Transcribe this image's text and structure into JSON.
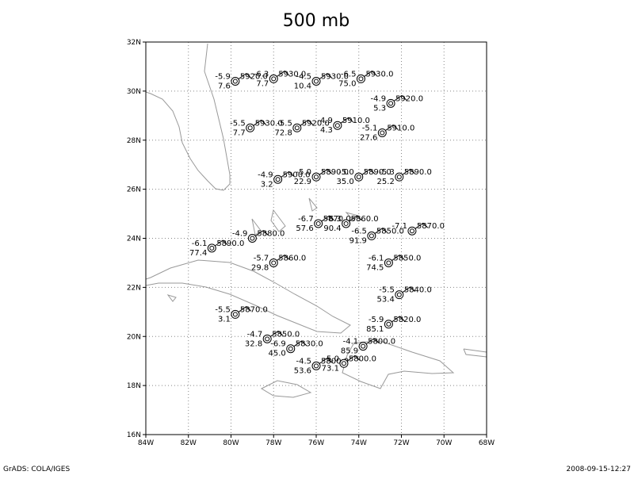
{
  "title": "500 mb",
  "xaxis": {
    "lim": [
      -84,
      -68
    ],
    "ticks": [
      {
        "value": -84,
        "label": "84W"
      },
      {
        "value": -82,
        "label": "82W"
      },
      {
        "value": -80,
        "label": "80W"
      },
      {
        "value": -78,
        "label": "78W"
      },
      {
        "value": -76,
        "label": "76W"
      },
      {
        "value": -74,
        "label": "74W"
      },
      {
        "value": -72,
        "label": "72W"
      },
      {
        "value": -70,
        "label": "70W"
      },
      {
        "value": -68,
        "label": "68W"
      }
    ]
  },
  "yaxis": {
    "lim": [
      16,
      32
    ],
    "ticks": [
      {
        "value": 16,
        "label": "16N"
      },
      {
        "value": 18,
        "label": "18N"
      },
      {
        "value": 20,
        "label": "20N"
      },
      {
        "value": 22,
        "label": "22N"
      },
      {
        "value": 24,
        "label": "24N"
      },
      {
        "value": 26,
        "label": "26N"
      },
      {
        "value": 28,
        "label": "28N"
      },
      {
        "value": 30,
        "label": "30N"
      },
      {
        "value": 32,
        "label": "32N"
      }
    ]
  },
  "stations": [
    {
      "lon": -79.8,
      "lat": 30.4,
      "temp": "-5.9",
      "height": "5920.0",
      "dd": "7.6"
    },
    {
      "lon": -78.0,
      "lat": 30.5,
      "temp": "-6.3",
      "height": "5930.0",
      "dd": "7.7"
    },
    {
      "lon": -76.0,
      "lat": 30.4,
      "temp": "-4.5",
      "height": "5930.0",
      "dd": "10.4"
    },
    {
      "lon": -73.9,
      "lat": 30.5,
      "temp": "-6.5",
      "height": "5930.0",
      "dd": "75.0"
    },
    {
      "lon": -72.5,
      "lat": 29.5,
      "temp": "-4.9",
      "height": "5920.0",
      "dd": "5.3"
    },
    {
      "lon": -79.1,
      "lat": 28.5,
      "temp": "-5.5",
      "height": "5930.0",
      "dd": "7.7"
    },
    {
      "lon": -76.9,
      "lat": 28.5,
      "temp": "-5.5",
      "height": "5920.0",
      "dd": "72.8"
    },
    {
      "lon": -75.0,
      "lat": 28.6,
      "temp": "-4.9",
      "height": "5910.0",
      "dd": "4.3"
    },
    {
      "lon": -72.9,
      "lat": 28.3,
      "temp": "-5.1",
      "height": "5910.0",
      "dd": "27.6"
    },
    {
      "lon": -77.8,
      "lat": 26.4,
      "temp": "-4.9",
      "height": "5900.0",
      "dd": "3.2"
    },
    {
      "lon": -76.0,
      "lat": 26.5,
      "temp": "-5.0",
      "height": "5890.0",
      "dd": "22.9"
    },
    {
      "lon": -74.0,
      "lat": 26.5,
      "temp": "-5.0",
      "height": "5890.0",
      "dd": "35.0"
    },
    {
      "lon": -72.1,
      "lat": 26.5,
      "temp": "-5.3",
      "height": "5890.0",
      "dd": "25.2"
    },
    {
      "lon": -80.9,
      "lat": 23.6,
      "temp": "-6.1",
      "height": "5890.0",
      "dd": "77.4"
    },
    {
      "lon": -79.0,
      "lat": 24.0,
      "temp": "-4.9",
      "height": "5880.0"
    },
    {
      "lon": -75.9,
      "lat": 24.6,
      "temp": "-6.7",
      "height": "5870.0",
      "dd": "57.6"
    },
    {
      "lon": -74.6,
      "lat": 24.6,
      "temp": "-6.3",
      "height": "5860.0",
      "dd": "90.4"
    },
    {
      "lon": -73.4,
      "lat": 24.1,
      "temp": "-6.5",
      "height": "5850.0",
      "dd": "91.9"
    },
    {
      "lon": -71.5,
      "lat": 24.3,
      "temp": "-7.1",
      "height": "5870.0"
    },
    {
      "lon": -78.0,
      "lat": 23.0,
      "temp": "-5.7",
      "height": "5860.0",
      "dd": "29.8"
    },
    {
      "lon": -72.6,
      "lat": 23.0,
      "temp": "-6.1",
      "height": "5850.0",
      "dd": "74.5"
    },
    {
      "lon": -72.1,
      "lat": 21.7,
      "temp": "-5.5",
      "height": "5840.0",
      "dd": "53.4"
    },
    {
      "lon": -79.8,
      "lat": 20.9,
      "temp": "-5.5",
      "height": "5870.0",
      "dd": "3.1"
    },
    {
      "lon": -78.3,
      "lat": 19.9,
      "temp": "-4.7",
      "height": "5850.0",
      "dd": "32.8"
    },
    {
      "lon": -77.2,
      "lat": 19.5,
      "temp": "-6.9",
      "height": "5830.0",
      "dd": "45.0"
    },
    {
      "lon": -72.6,
      "lat": 20.5,
      "temp": "-5.9",
      "height": "5820.0",
      "dd": "85.1"
    },
    {
      "lon": -73.8,
      "lat": 19.6,
      "temp": "-4.1",
      "height": "5800.0",
      "dd": "85.9"
    },
    {
      "lon": -76.0,
      "lat": 18.8,
      "temp": "-4.5",
      "height": "5800.0",
      "dd": "53.6"
    },
    {
      "lon": -74.7,
      "lat": 18.9,
      "temp": "-5.0",
      "height": "5800.0",
      "dd": "73.1"
    }
  ],
  "footer": {
    "left": "GrADS: COLA/IGES",
    "right": "2008-09-15-12:27"
  }
}
